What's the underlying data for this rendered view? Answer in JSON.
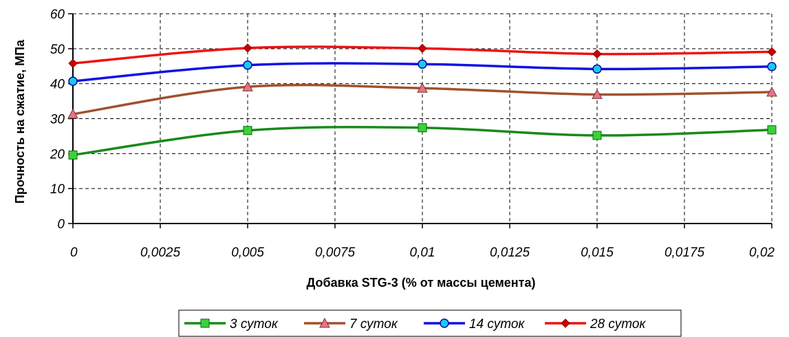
{
  "chart_data": {
    "type": "line",
    "xlabel": "Добавка STG-3 (% от массы цемента)",
    "ylabel": "Прочность на сжатие, МПа",
    "ylim": [
      0,
      60
    ],
    "xlim": [
      0,
      0.02
    ],
    "y_ticks": [
      "0",
      "10",
      "20",
      "30",
      "40",
      "50",
      "60"
    ],
    "x_ticks": [
      "0",
      "0,0025",
      "0,005",
      "0,0075",
      "0,01",
      "0,0125",
      "0,015",
      "0,0175",
      "0,02"
    ],
    "grid": true,
    "legend_position": "bottom",
    "x": [
      0,
      0.005,
      0.01,
      0.015,
      0.02
    ],
    "series": [
      {
        "name": "3 суток",
        "values": [
          19.6,
          26.6,
          27.4,
          25.2,
          26.8
        ],
        "color": "#1a8a1a",
        "marker_color": "#3bd13b",
        "marker": "square"
      },
      {
        "name": "7 суток",
        "values": [
          31.3,
          39.1,
          38.7,
          36.9,
          37.6
        ],
        "color": "#a0522d",
        "marker_color": "#e8709a",
        "marker": "triangle"
      },
      {
        "name": "14 суток",
        "values": [
          40.7,
          45.3,
          45.6,
          44.2,
          44.9
        ],
        "color": "#1010e6",
        "marker_color": "#19c8f0",
        "marker": "circle"
      },
      {
        "name": "28 суток",
        "values": [
          45.8,
          50.2,
          50.1,
          48.5,
          49.1
        ],
        "color": "#ee1111",
        "marker_color": "#cc0000",
        "marker": "diamond"
      }
    ]
  }
}
